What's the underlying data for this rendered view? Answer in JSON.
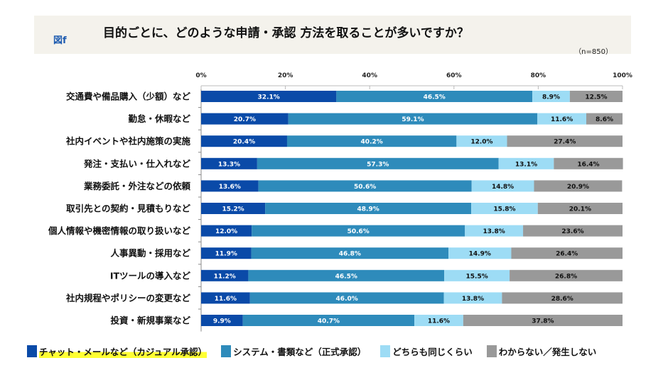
{
  "header": {
    "figure_label": "図f",
    "title": "目的ごとに、どのような申請・承認 方法を取ることが多いですか？",
    "sample_size": "（n=850）"
  },
  "chart_data": {
    "type": "bar",
    "orientation": "horizontal",
    "stacked": true,
    "xlim": [
      0,
      100
    ],
    "x_ticks": [
      "0%",
      "20%",
      "40%",
      "60%",
      "80%",
      "100%"
    ],
    "grid": false,
    "legend_placement": "bottom",
    "categories": [
      "交通費や備品購入（少額）など",
      "勤怠・休暇など",
      "社内イベントや社内施策の実施",
      "発注・支払い・仕入れなど",
      "業務委託・外注などの依頼",
      "取引先との契約・見積もりなど",
      "個人情報や機密情報の取り扱いなど",
      "人事異動・採用など",
      "ITツールの導入など",
      "社内規程やポリシーの変更など",
      "投資・新規事業など"
    ],
    "series": [
      {
        "name": "チャット・メールなど（カジュアル承認）",
        "color": "#0a4aa8",
        "label_color": "#ffffff",
        "highlighted": true,
        "values": [
          32.1,
          20.7,
          20.4,
          13.3,
          13.6,
          15.2,
          12.0,
          11.9,
          11.2,
          11.6,
          9.9
        ]
      },
      {
        "name": "システム・書類など（正式承認）",
        "color": "#2e8bbb",
        "label_color": "#ffffff",
        "values": [
          46.5,
          59.1,
          40.2,
          57.3,
          50.6,
          48.9,
          50.6,
          46.8,
          46.5,
          46.0,
          40.7
        ]
      },
      {
        "name": "どちらも同じくらい",
        "color": "#9ddcf5",
        "label_color": "#111111",
        "values": [
          8.9,
          11.6,
          12.0,
          13.1,
          14.8,
          15.8,
          13.8,
          14.9,
          15.5,
          13.8,
          11.6
        ]
      },
      {
        "name": "わからない／発生しない",
        "color": "#999999",
        "label_color": "#111111",
        "values": [
          12.5,
          8.6,
          27.4,
          16.4,
          20.9,
          20.1,
          23.6,
          26.4,
          26.8,
          28.6,
          37.8
        ]
      }
    ]
  }
}
